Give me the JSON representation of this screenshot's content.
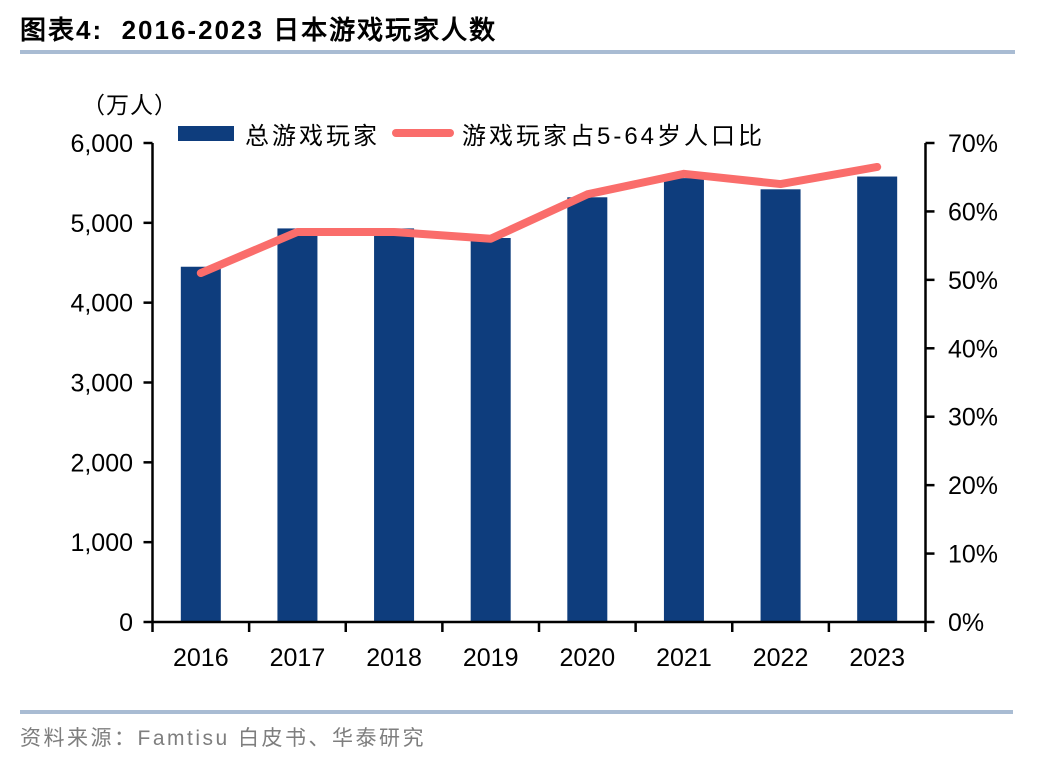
{
  "header": {
    "title": "图表4:  2016-2023 日本游戏玩家人数"
  },
  "footer": {
    "source": "资料来源：Famtisu 白皮书、华泰研究"
  },
  "colors": {
    "bar": "#0E3D7D",
    "line": "#FA6D6B",
    "divider": "#A9BCD3",
    "footer_text": "#7E7E7E",
    "axis": "#000000"
  },
  "chart_data": {
    "type": "bar",
    "title": "2016-2023 日本游戏玩家人数",
    "unit_label": "（万人）",
    "categories": [
      "2016",
      "2017",
      "2018",
      "2019",
      "2020",
      "2021",
      "2022",
      "2023"
    ],
    "series": [
      {
        "name": "总游戏玩家",
        "type": "bar",
        "axis": "left",
        "color": "#0E3D7D",
        "values": [
          4450,
          4930,
          4930,
          4810,
          5320,
          5560,
          5420,
          5580
        ]
      },
      {
        "name": "游戏玩家占5-64岁人口比",
        "type": "line",
        "axis": "right",
        "color": "#FA6D6B",
        "values": [
          51,
          57,
          57,
          56,
          62.5,
          65.5,
          64,
          66.5
        ]
      }
    ],
    "left_axis": {
      "min": 0,
      "max": 6000,
      "step": 1000,
      "tick_labels": [
        "0",
        "1,000",
        "2,000",
        "3,000",
        "4,000",
        "5,000",
        "6,000"
      ]
    },
    "right_axis": {
      "min": 0,
      "max": 70,
      "step": 10,
      "tick_labels": [
        "0%",
        "10%",
        "20%",
        "30%",
        "40%",
        "50%",
        "60%",
        "70%"
      ]
    },
    "grid": false,
    "legend_position": "top"
  }
}
